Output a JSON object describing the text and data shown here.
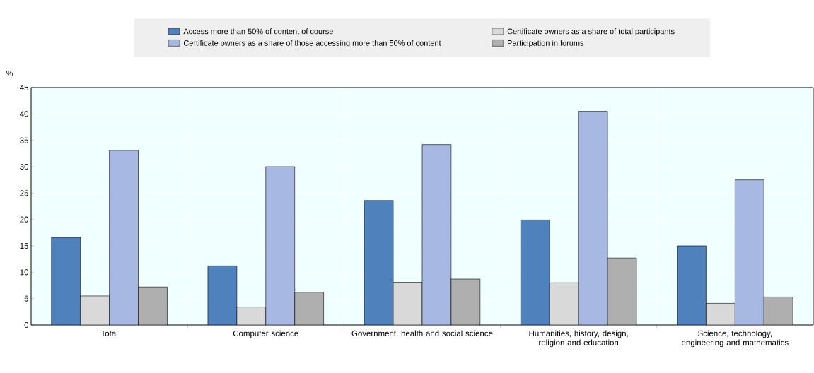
{
  "chart_data": {
    "type": "bar",
    "ylabel": "%",
    "categories": [
      "Total",
      "Computer science",
      "Government, health and social science",
      "Humanities, history, design, religion and education",
      "Science, technology, engineering and mathematics"
    ],
    "series": [
      {
        "name": "Access more than 50% of content of course",
        "color": "#4f81bd",
        "values": [
          16.6,
          11.2,
          23.6,
          19.9,
          15.0
        ]
      },
      {
        "name": "Certificate owners as a share of total participants",
        "color": "#d9d9d9",
        "values": [
          5.5,
          3.4,
          8.1,
          8.0,
          4.1
        ]
      },
      {
        "name": "Certificate owners as a share of those accessing more than 50% of content",
        "color": "#a7b8e2",
        "values": [
          33.1,
          30.0,
          34.2,
          40.5,
          27.5
        ]
      },
      {
        "name": "Participation in forums",
        "color": "#afafaf",
        "values": [
          7.2,
          6.2,
          8.7,
          12.7,
          5.3
        ]
      }
    ],
    "ylim": [
      0,
      45
    ],
    "yticks": [
      0,
      5,
      10,
      15,
      20,
      25,
      30,
      35,
      40,
      45
    ],
    "grid": true,
    "legend": "top"
  }
}
